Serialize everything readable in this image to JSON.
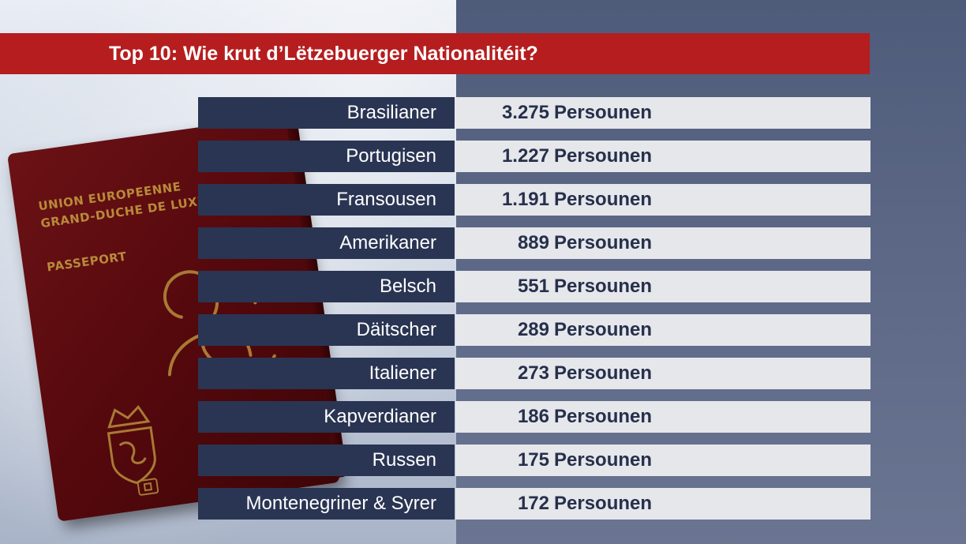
{
  "title": "Top 10: Wie krut d’Lëtzebuerger Nationalitéit?",
  "unit_label": "Persounen",
  "rows": [
    {
      "nationality": "Brasilianer",
      "count": "3.275"
    },
    {
      "nationality": "Portugisen",
      "count": "1.227"
    },
    {
      "nationality": "Fransousen",
      "count": "1.191"
    },
    {
      "nationality": "Amerikaner",
      "count": "889"
    },
    {
      "nationality": "Belsch",
      "count": "551"
    },
    {
      "nationality": "Däitscher",
      "count": "289"
    },
    {
      "nationality": "Italiener",
      "count": "273"
    },
    {
      "nationality": "Kapverdianer",
      "count": "186"
    },
    {
      "nationality": "Russen",
      "count": "175"
    },
    {
      "nationality": "Montenegriner & Syrer",
      "count": "172"
    }
  ],
  "passport": {
    "line1": "UNION EUROPEENNE",
    "line2": "GRAND-DUCHE DE LUXE",
    "line3": "PASSEPORT"
  },
  "colors": {
    "title_bar": "#b51d1f",
    "label_cell": "#2a3553",
    "value_cell": "#e6e7eb",
    "value_text": "#26304b"
  }
}
